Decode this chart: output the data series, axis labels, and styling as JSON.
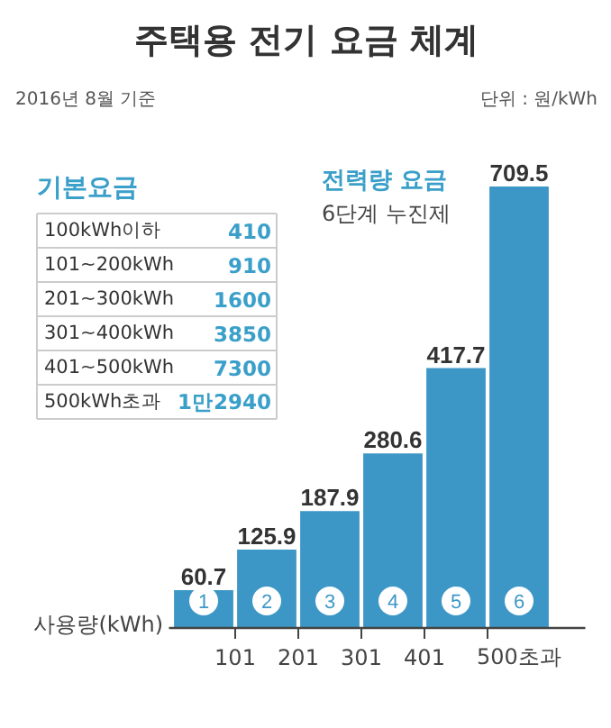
{
  "chart_data": {
    "type": "bar",
    "title": "주택용 전기 요금 체계",
    "subtitle": "2016년 8월 기준",
    "xlabel": "사용량(kWh)",
    "categories": [
      "1",
      "2",
      "3",
      "4",
      "5",
      "6"
    ],
    "values": [
      60.7,
      125.9,
      187.9,
      280.6,
      417.7,
      709.5
    ],
    "color": "#3d97c6",
    "data_labels": true,
    "annotations": [
      "단위 : 원/kWh",
      "전력량 요금",
      "6단계 누진제",
      "101",
      "201",
      "301",
      "401",
      "500초과",
      "기본요금",
      "100kWh이하",
      "410",
      "101~200kWh",
      "910",
      "201~300kWh",
      "1600",
      "301~400kWh",
      "3850",
      "401~500kWh",
      "7300",
      "500kWh초과",
      "1만2940"
    ]
  }
}
